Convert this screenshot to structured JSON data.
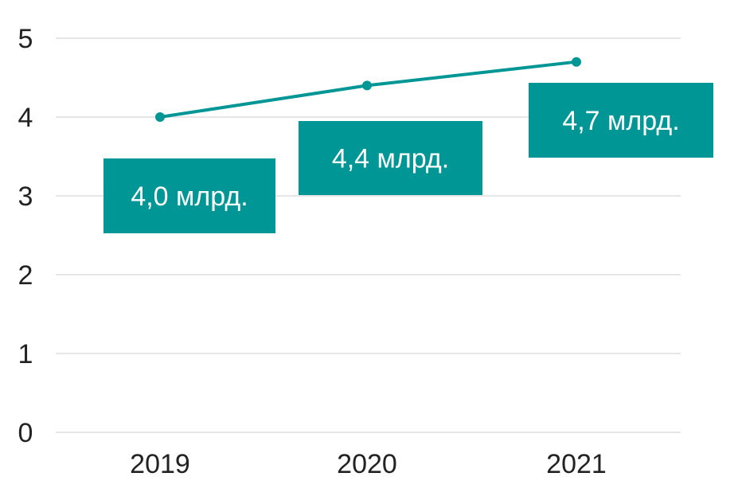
{
  "chart_data": {
    "type": "line",
    "title": "",
    "xlabel": "",
    "ylabel": "",
    "categories": [
      "2019",
      "2020",
      "2021"
    ],
    "values": [
      4.0,
      4.4,
      4.7
    ],
    "data_labels": [
      "4,0 млрд.",
      "4,4 млрд.",
      "4,7 млрд."
    ],
    "ylim": [
      0,
      5
    ],
    "yticks": [
      "0",
      "1",
      "2",
      "3",
      "4",
      "5"
    ],
    "grid": true,
    "legend": "none",
    "colors": {
      "series": "#009696",
      "label_bg": "#009696",
      "label_text": "#ffffff",
      "grid": "#e6e6e6",
      "axis_text": "#222222"
    }
  }
}
